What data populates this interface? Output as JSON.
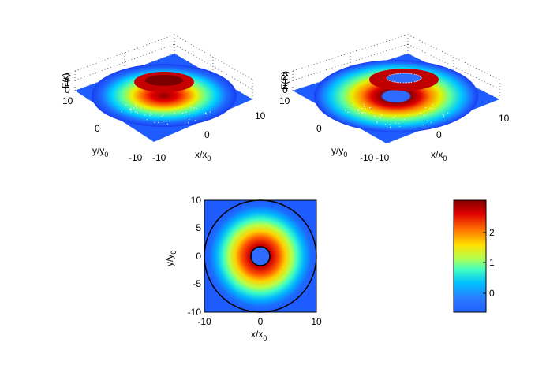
{
  "chart_data": [
    {
      "type": "surface",
      "zlabel": "F(r)",
      "xlabel": "x/x",
      "xlabel_sub": "0",
      "ylabel": "y/y",
      "ylabel_sub": "0",
      "xlim": [
        -10,
        10
      ],
      "ylim": [
        -10,
        10
      ],
      "zlim": [
        0,
        2
      ],
      "x_ticks": [
        "-10",
        "0",
        "10"
      ],
      "y_ticks": [
        "-10",
        "0",
        "10"
      ],
      "z_ticks": [
        "0",
        "1",
        "2"
      ],
      "ring_radius": 3,
      "peak_value": 2.5,
      "colormap": "jet",
      "grid": true
    },
    {
      "type": "surface",
      "zlabel": "F(R)",
      "xlabel": "x/x",
      "xlabel_sub": "0",
      "ylabel": "y/y",
      "ylabel_sub": "0",
      "xlim": [
        -10,
        10
      ],
      "ylim": [
        -10,
        10
      ],
      "zlim": [
        0,
        2
      ],
      "x_ticks": [
        "-10",
        "0",
        "10"
      ],
      "y_ticks": [
        "-10",
        "0",
        "10"
      ],
      "z_ticks": [
        "0",
        "1",
        "2"
      ],
      "inner_hole_radius": 2,
      "outer_boundary_radius": 10,
      "ring_radius": 3.6,
      "peak_value": 2.9,
      "colormap": "jet",
      "grid": true
    },
    {
      "type": "heatmap",
      "xlabel": "x/x",
      "xlabel_sub": "0",
      "ylabel": "y/y",
      "ylabel_sub": "0",
      "xlim": [
        -10,
        10
      ],
      "ylim": [
        -10,
        10
      ],
      "x_ticks": [
        "-10",
        "0",
        "10"
      ],
      "y_ticks": [
        "10",
        "5",
        "0",
        "-5",
        "-10"
      ],
      "inner_circle_radius": 1.7,
      "outer_circle_radius": 10,
      "ring_radius": 3.6,
      "colormap": "jet"
    },
    {
      "type": "colorbar",
      "clim": [
        -0.5,
        3
      ],
      "ticks": [
        "2",
        "1",
        "0"
      ],
      "colormap": "jet"
    }
  ]
}
